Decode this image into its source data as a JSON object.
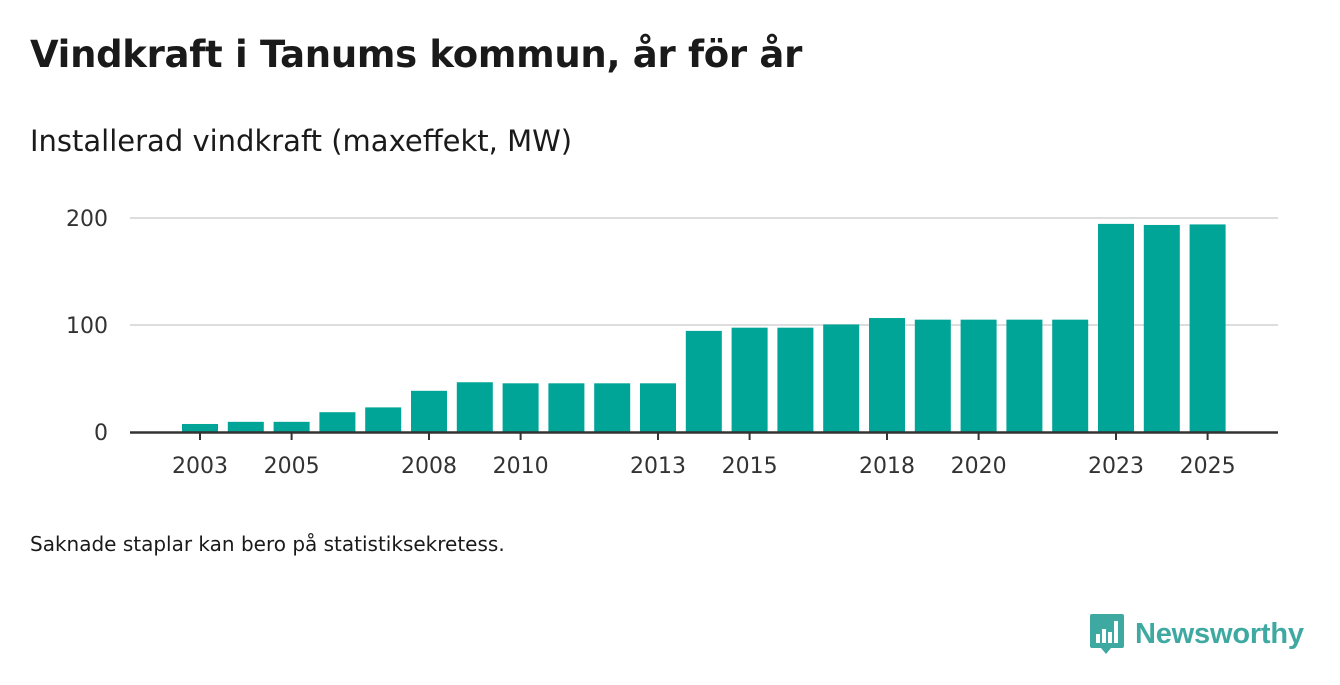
{
  "title": "Vindkraft i Tanums kommun, år för år",
  "subtitle": "Installerad vindkraft (maxeffekt, MW)",
  "footnote": "Saknade staplar kan bero på statistiksekretess.",
  "brand": {
    "name": "Newsworthy",
    "icon": "newsworthy-logo-icon",
    "color": "#3ea9a1"
  },
  "colors": {
    "bar": "#00a598",
    "grid": "#dddddd",
    "axis": "#333333",
    "text": "#333333"
  },
  "chart_data": {
    "type": "bar",
    "title": "Vindkraft i Tanums kommun, år för år",
    "ylabel": "Installerad vindkraft (maxeffekt, MW)",
    "xlabel": "",
    "ylim": [
      0,
      200
    ],
    "yticks": [
      0,
      100,
      200
    ],
    "grid": true,
    "categories": [
      2003,
      2004,
      2005,
      2006,
      2007,
      2008,
      2009,
      2010,
      2011,
      2012,
      2013,
      2014,
      2015,
      2016,
      2017,
      2018,
      2019,
      2020,
      2021,
      2022,
      2023,
      2024,
      2025
    ],
    "values": [
      7.5,
      9.5,
      9.5,
      18.5,
      23,
      38.5,
      46.5,
      45.5,
      45.5,
      45.5,
      45.5,
      94.5,
      97.5,
      97.5,
      100.5,
      106.5,
      105,
      105,
      105,
      105,
      194.5,
      193.5,
      194
    ],
    "xtick_labels": [
      2003,
      2005,
      2008,
      2010,
      2013,
      2015,
      2018,
      2020,
      2023,
      2025
    ]
  }
}
